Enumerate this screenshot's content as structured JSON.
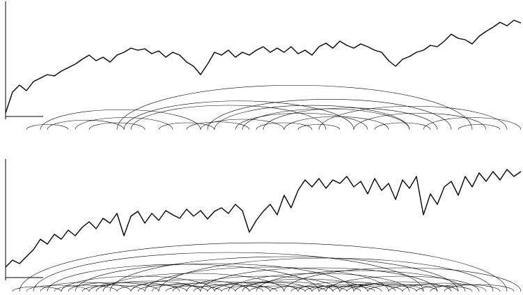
{
  "chart_data": [
    {
      "type": "arcline",
      "color": "#000000",
      "x": [
        0,
        1,
        2,
        3,
        4,
        5,
        6,
        7,
        8,
        9,
        10,
        11,
        12,
        13,
        14,
        15,
        16,
        17,
        18,
        19,
        20,
        21,
        22,
        23,
        24,
        25,
        26,
        27,
        28,
        29,
        30,
        31,
        32,
        33,
        34,
        35,
        36,
        37,
        38,
        39,
        40,
        41,
        42,
        43,
        44,
        45,
        46,
        47,
        48,
        49,
        50,
        51,
        52,
        53,
        54,
        55,
        56,
        57,
        58,
        59,
        60,
        61,
        62,
        63,
        64,
        65,
        66,
        67,
        68,
        69,
        70,
        71,
        72,
        73,
        74
      ],
      "values": [
        5,
        35,
        45,
        37,
        50,
        55,
        60,
        58,
        65,
        70,
        75,
        82,
        88,
        80,
        85,
        78,
        88,
        92,
        98,
        95,
        97,
        90,
        94,
        85,
        92,
        88,
        78,
        72,
        60,
        75,
        92,
        88,
        95,
        85,
        92,
        88,
        95,
        100,
        92,
        98,
        92,
        100,
        90,
        95,
        88,
        100,
        105,
        98,
        108,
        102,
        98,
        104,
        100,
        95,
        92,
        80,
        72,
        82,
        86,
        92,
        95,
        102,
        100,
        108,
        118,
        112,
        110,
        104,
        115,
        122,
        128,
        135,
        130,
        138,
        134
      ],
      "xlim": [
        0,
        74
      ],
      "ylim": [
        0,
        140
      ],
      "arcs": [
        [
          16,
          67
        ],
        [
          29,
          64
        ],
        [
          30,
          58
        ],
        [
          17,
          50
        ],
        [
          34,
          58
        ],
        [
          33,
          52
        ],
        [
          5,
          28
        ],
        [
          6,
          17
        ],
        [
          10,
          24
        ],
        [
          18,
          46
        ],
        [
          22,
          30
        ],
        [
          37,
          62
        ],
        [
          40,
          55
        ],
        [
          45,
          72
        ],
        [
          50,
          69
        ],
        [
          12,
          20
        ],
        [
          26,
          35
        ],
        [
          60,
          74
        ],
        [
          3,
          9
        ],
        [
          42,
          48
        ],
        [
          53,
          61
        ],
        [
          65,
          71
        ],
        [
          28,
          40
        ],
        [
          36,
          44
        ]
      ]
    },
    {
      "type": "arcline",
      "color": "#000000",
      "x": [
        0,
        1,
        2,
        3,
        4,
        5,
        6,
        7,
        8,
        9,
        10,
        11,
        12,
        13,
        14,
        15,
        16,
        17,
        18,
        19,
        20,
        21,
        22,
        23,
        24,
        25,
        26,
        27,
        28,
        29,
        30,
        31,
        32,
        33,
        34,
        35,
        36,
        37,
        38,
        39,
        40,
        41,
        42,
        43,
        44,
        45,
        46,
        47,
        48,
        49,
        50,
        51,
        52,
        53,
        54,
        55,
        56,
        57,
        58,
        59,
        60,
        61,
        62,
        63,
        64,
        65,
        66,
        67,
        68,
        69,
        70,
        71,
        72,
        73,
        74
      ],
      "values": [
        15,
        25,
        20,
        30,
        40,
        55,
        48,
        62,
        55,
        68,
        60,
        72,
        80,
        70,
        85,
        78,
        92,
        60,
        88,
        95,
        78,
        92,
        82,
        96,
        90,
        85,
        98,
        88,
        96,
        84,
        95,
        100,
        92,
        105,
        96,
        65,
        82,
        95,
        105,
        90,
        118,
        100,
        125,
        140,
        130,
        142,
        128,
        140,
        135,
        145,
        130,
        138,
        120,
        142,
        125,
        135,
        112,
        140,
        128,
        145,
        90,
        120,
        105,
        130,
        138,
        118,
        145,
        130,
        150,
        138,
        152,
        140,
        155,
        145,
        152
      ],
      "xlim": [
        0,
        74
      ],
      "ylim": [
        0,
        160
      ],
      "arcs": [
        [
          2,
          72
        ],
        [
          4,
          60
        ],
        [
          6,
          45
        ],
        [
          8,
          30
        ],
        [
          10,
          50
        ],
        [
          12,
          25
        ],
        [
          14,
          40
        ],
        [
          15,
          65
        ],
        [
          18,
          35
        ],
        [
          20,
          55
        ],
        [
          22,
          70
        ],
        [
          24,
          38
        ],
        [
          26,
          48
        ],
        [
          28,
          62
        ],
        [
          30,
          44
        ],
        [
          32,
          58
        ],
        [
          34,
          52
        ],
        [
          36,
          66
        ],
        [
          38,
          46
        ],
        [
          40,
          74
        ],
        [
          42,
          56
        ],
        [
          44,
          54
        ],
        [
          46,
          68
        ],
        [
          48,
          60
        ],
        [
          50,
          64
        ],
        [
          52,
          62
        ],
        [
          3,
          12
        ],
        [
          5,
          18
        ],
        [
          7,
          16
        ],
        [
          9,
          22
        ],
        [
          11,
          20
        ],
        [
          13,
          28
        ],
        [
          16,
          26
        ],
        [
          19,
          29
        ],
        [
          21,
          33
        ],
        [
          23,
          31
        ],
        [
          27,
          37
        ],
        [
          29,
          42
        ],
        [
          31,
          39
        ],
        [
          33,
          47
        ],
        [
          35,
          43
        ],
        [
          41,
          49
        ],
        [
          43,
          51
        ],
        [
          45,
          53
        ],
        [
          47,
          57
        ],
        [
          49,
          59
        ],
        [
          55,
          65
        ],
        [
          57,
          69
        ],
        [
          59,
          67
        ],
        [
          61,
          71
        ],
        [
          63,
          73
        ],
        [
          1,
          8
        ]
      ]
    }
  ]
}
